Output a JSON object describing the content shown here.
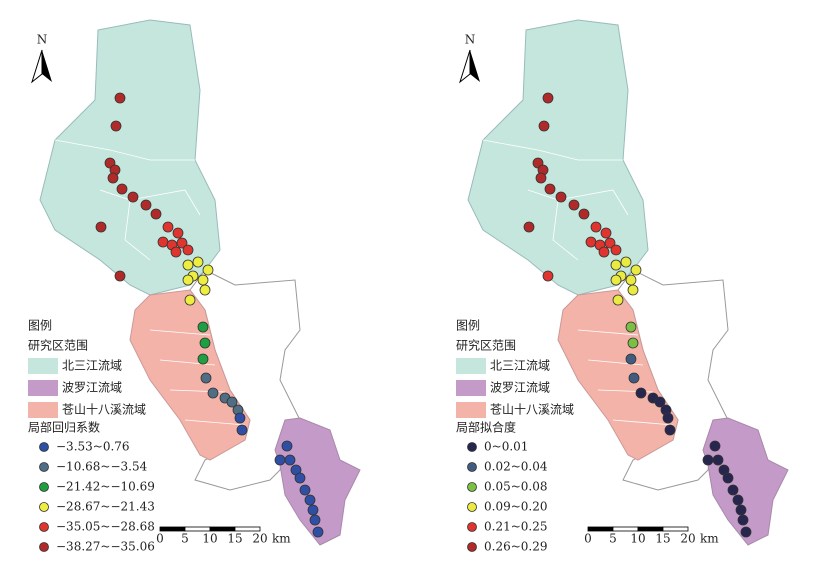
{
  "maps": [
    {
      "north": "N",
      "legend": {
        "title": "图例",
        "area_title": "研究区范围",
        "areas": [
          {
            "label": "北三江流域",
            "color": "#c5e6dc"
          },
          {
            "label": "波罗江流域",
            "color": "#c39ac8"
          },
          {
            "label": "苍山十八溪流域",
            "color": "#f3b3a9"
          }
        ],
        "class_title": "局部回归系数",
        "classes": [
          {
            "label": "−3.53~0.76",
            "color": "#2e4fa3"
          },
          {
            "label": "−10.68~−3.54",
            "color": "#4f6d85"
          },
          {
            "label": "−21.42~−10.69",
            "color": "#1fa040"
          },
          {
            "label": "−28.67~−21.43",
            "color": "#eeee40"
          },
          {
            "label": "−35.05~−28.68",
            "color": "#e0352f"
          },
          {
            "label": "−38.27~−35.06",
            "color": "#b02a2a"
          }
        ]
      },
      "scale": {
        "ticks": [
          0,
          5,
          10,
          15,
          20
        ],
        "unit": "km"
      }
    },
    {
      "north": "N",
      "legend": {
        "title": "图例",
        "area_title": "研究区范围",
        "areas": [
          {
            "label": "北三江流域",
            "color": "#c5e6dc"
          },
          {
            "label": "波罗江流域",
            "color": "#c39ac8"
          },
          {
            "label": "苍山十八溪流域",
            "color": "#f3b3a9"
          }
        ],
        "class_title": "局部拟合度",
        "classes": [
          {
            "label": "0~0.01",
            "color": "#26264f"
          },
          {
            "label": "0.02~0.04",
            "color": "#3f5c80"
          },
          {
            "label": "0.05~0.08",
            "color": "#7cc043"
          },
          {
            "label": "0.09~0.20",
            "color": "#eaea40"
          },
          {
            "label": "0.21~0.25",
            "color": "#e0352f"
          },
          {
            "label": "0.26~0.29",
            "color": "#b02a2a"
          }
        ]
      },
      "scale": {
        "ticks": [
          0,
          5,
          10,
          15,
          20
        ],
        "unit": "km"
      }
    }
  ]
}
